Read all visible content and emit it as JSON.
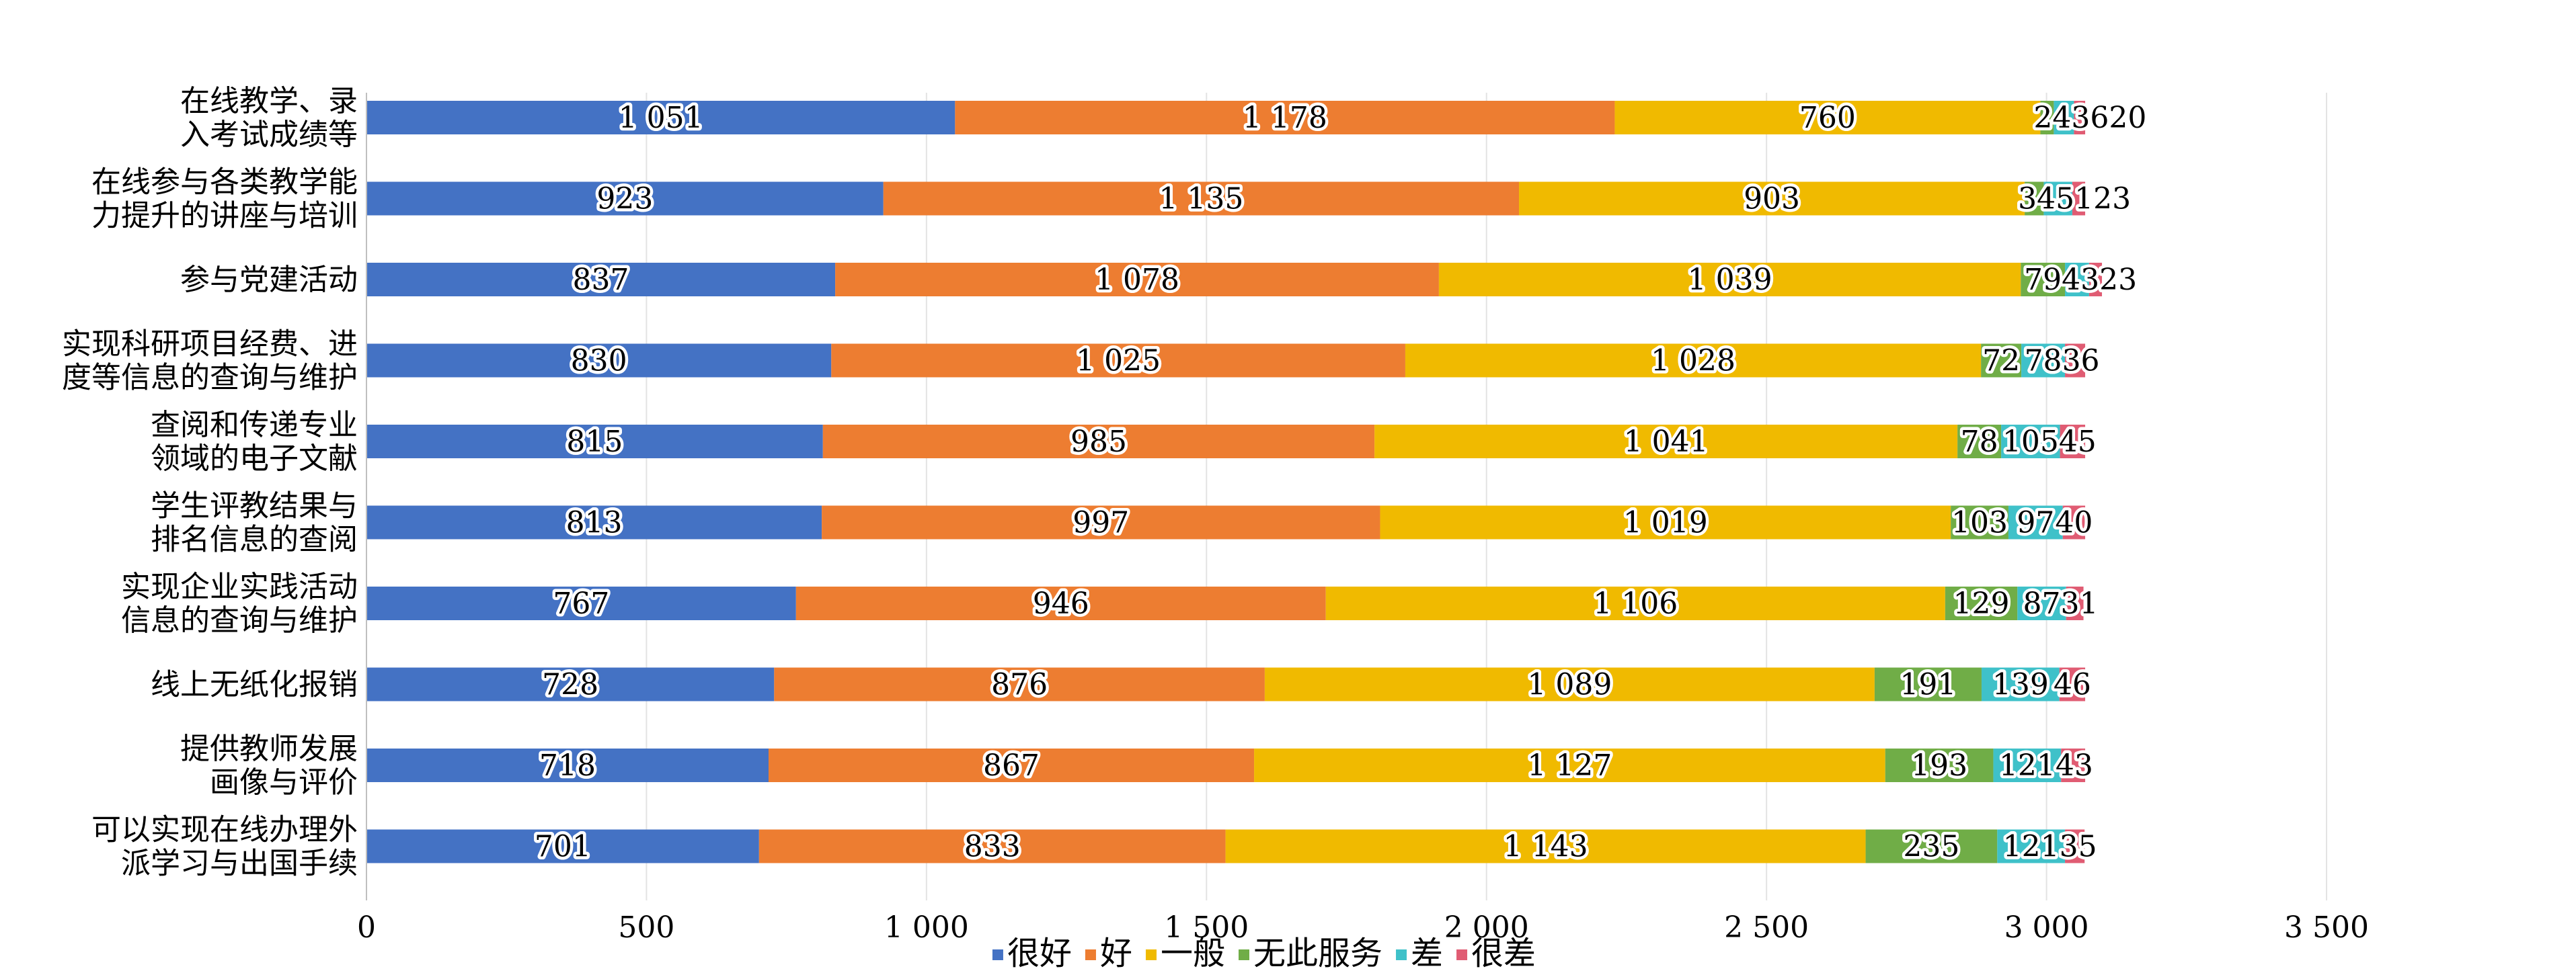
{
  "chart_data": {
    "type": "bar",
    "orientation": "horizontal",
    "stacked": true,
    "categories": [
      "在线教学、录\n入考试成绩等",
      "在线参与各类教学能\n力提升的讲座与培训",
      "参与党建活动",
      "实现科研项目经费、进\n度等信息的查询与维护",
      "查阅和传递专业\n领域的电子文献",
      "学生评教结果与\n排名信息的查阅",
      "实现企业实践活动\n信息的查询与维护",
      "线上无纸化报销",
      "提供教师发展\n画像与评价",
      "可以实现在线办理外\n派学习与出国手续"
    ],
    "series": [
      {
        "name": "很好",
        "color": "#4472C4",
        "values": [
          1051,
          923,
          837,
          830,
          815,
          813,
          767,
          728,
          718,
          701
        ]
      },
      {
        "name": "好",
        "color": "#ED7D31",
        "values": [
          1178,
          1135,
          1078,
          1025,
          985,
          997,
          946,
          876,
          867,
          833
        ]
      },
      {
        "name": "一般",
        "color": "#F0BA00",
        "values": [
          760,
          903,
          1039,
          1028,
          1041,
          1019,
          1106,
          1089,
          1127,
          1143
        ]
      },
      {
        "name": "无此服务",
        "color": "#70AD47",
        "values": [
          24,
          34,
          79,
          72,
          78,
          103,
          129,
          191,
          193,
          235
        ]
      },
      {
        "name": "差",
        "color": "#3FC1C9",
        "values": [
          36,
          51,
          43,
          78,
          105,
          97,
          87,
          139,
          121,
          121
        ]
      },
      {
        "name": "很差",
        "color": "#E05C73",
        "values": [
          20,
          23,
          23,
          36,
          45,
          40,
          31,
          46,
          43,
          35
        ]
      }
    ],
    "value_labels": [
      [
        "1 051",
        "1 178",
        "760",
        "24",
        "36",
        "20"
      ],
      [
        "923",
        "1 135",
        "903",
        "34",
        "51",
        "23"
      ],
      [
        "837",
        "1 078",
        "1 039",
        "79",
        "43",
        "23"
      ],
      [
        "830",
        "1 025",
        "1 028",
        "72",
        "78",
        "36"
      ],
      [
        "815",
        "985",
        "1 041",
        "78",
        "105",
        "45"
      ],
      [
        "813",
        "997",
        "1 019",
        "103",
        "97",
        "40"
      ],
      [
        "767",
        "946",
        "1 106",
        "129",
        "87",
        "31"
      ],
      [
        "728",
        "876",
        "1 089",
        "191",
        "139",
        "46"
      ],
      [
        "718",
        "867",
        "1 127",
        "193",
        "121",
        "43"
      ],
      [
        "701",
        "833",
        "1 143",
        "235",
        "121",
        "35"
      ]
    ],
    "x_ticks": [
      0,
      500,
      1000,
      1500,
      2000,
      2500,
      3000,
      3500
    ],
    "x_tick_labels": [
      "0",
      "500",
      "1 000",
      "1 500",
      "2 000",
      "2 500",
      "3 000",
      "3 500"
    ],
    "xlim": [
      0,
      3500
    ],
    "title": "",
    "xlabel": "",
    "ylabel": "",
    "grid": true,
    "legend": "bottom"
  }
}
